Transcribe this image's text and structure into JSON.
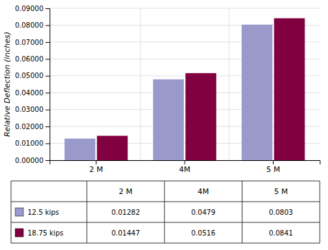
{
  "chart_data": {
    "type": "bar",
    "categories": [
      "2 M",
      "4M",
      "5 M"
    ],
    "series": [
      {
        "name": "12.5 kips",
        "color": "#9999cc",
        "values": [
          0.01282,
          0.0479,
          0.0803
        ]
      },
      {
        "name": "18.75 kips",
        "color": "#800040",
        "values": [
          0.01447,
          0.0516,
          0.0841
        ]
      }
    ],
    "y_label": "Relative Deflection (inches)",
    "ylim": [
      0.0,
      0.09
    ],
    "yticks": [
      {
        "value": 0.0,
        "label": "0.00000"
      },
      {
        "value": 0.01,
        "label": "0.01000"
      },
      {
        "value": 0.02,
        "label": "0.02000"
      },
      {
        "value": 0.03,
        "label": "0.03000"
      },
      {
        "value": 0.04,
        "label": "0.04000"
      },
      {
        "value": 0.05,
        "label": "0.05000"
      },
      {
        "value": 0.06,
        "label": "0.06000"
      },
      {
        "value": 0.07,
        "label": "0.07000"
      },
      {
        "value": 0.08,
        "label": "0.08000"
      },
      {
        "value": 0.09,
        "label": "0.09000"
      }
    ],
    "grid": true
  }
}
